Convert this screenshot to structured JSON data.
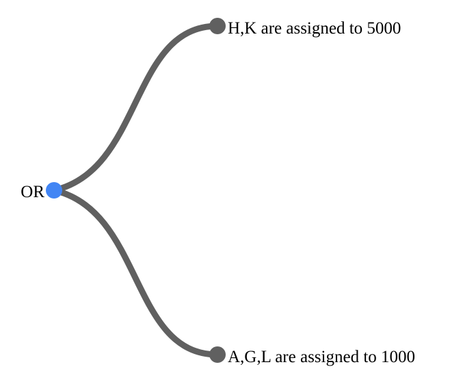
{
  "tree": {
    "root": {
      "label": "OR",
      "color": "#4285f4"
    },
    "children": [
      {
        "label": "H,K are assigned to 5000",
        "color": "#606060"
      },
      {
        "label": "A,G,L are assigned to 1000",
        "color": "#606060"
      }
    ],
    "link_color": "#606060"
  }
}
